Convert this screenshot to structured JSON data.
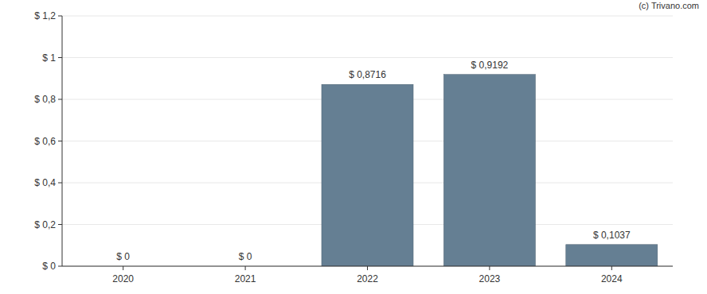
{
  "chart_data": {
    "type": "bar",
    "annotation": "(c) Trivano.com",
    "categories": [
      "2020",
      "2021",
      "2022",
      "2023",
      "2024"
    ],
    "values": [
      0,
      0,
      0.8716,
      0.9192,
      0.1037
    ],
    "value_labels": [
      "$ 0",
      "$ 0",
      "$ 0,8716",
      "$ 0,9192",
      "$ 0,1037"
    ],
    "color": "#657f93",
    "ylim": [
      0,
      1.2
    ],
    "yticks": [
      {
        "value": 0,
        "label": "$ 0"
      },
      {
        "value": 0.2,
        "label": "$ 0,2"
      },
      {
        "value": 0.4,
        "label": "$ 0,4"
      },
      {
        "value": 0.6,
        "label": "$ 0,6"
      },
      {
        "value": 0.8,
        "label": "$ 0,8"
      },
      {
        "value": 1,
        "label": "$ 1"
      },
      {
        "value": 1.2,
        "label": "$ 1,2"
      }
    ],
    "grid": true,
    "data_labels": true
  }
}
